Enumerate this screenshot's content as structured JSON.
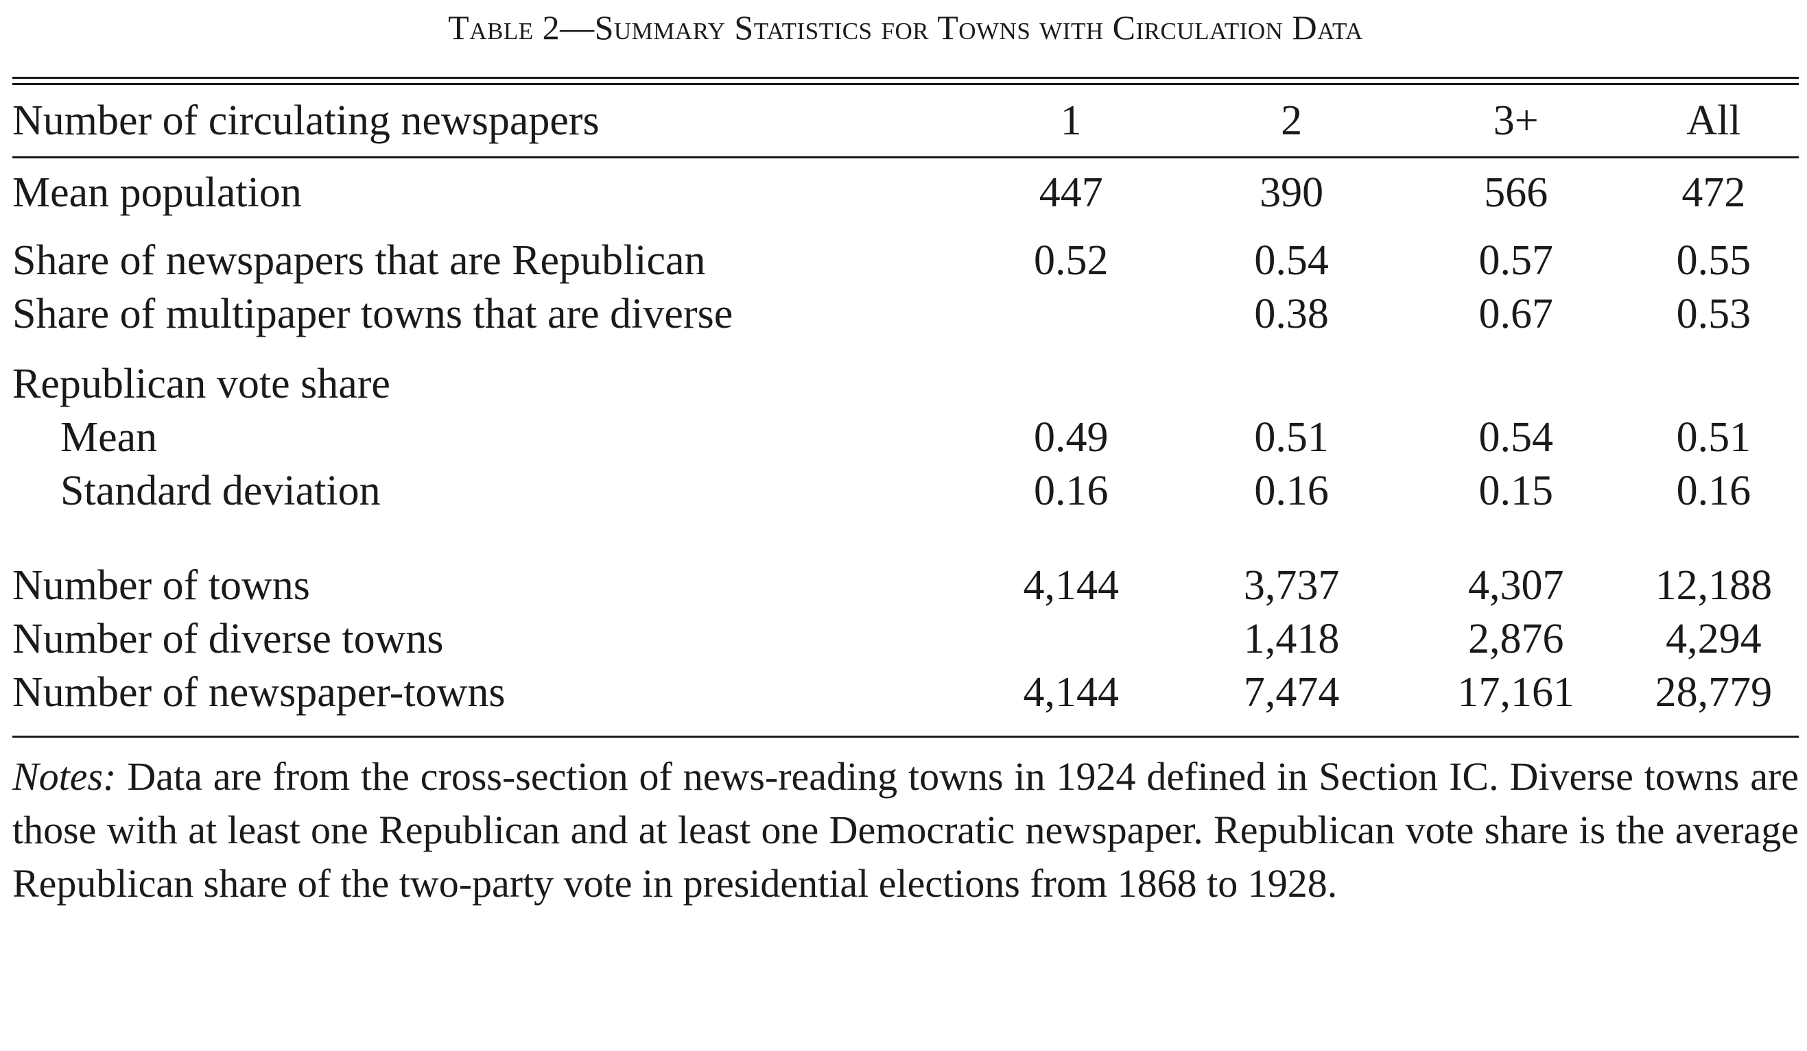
{
  "table": {
    "title": "Table 2—Summary Statistics for Towns with Circulation Data",
    "columns": [
      "Number of circulating newspapers",
      "1",
      "2",
      "3+",
      "All"
    ],
    "rows": {
      "mean_population": {
        "label": "Mean population",
        "values": [
          "447",
          "390",
          "566",
          "472"
        ]
      },
      "share_republican": {
        "label": "Share of newspapers that are Republican",
        "values": [
          "0.52",
          "0.54",
          "0.57",
          "0.55"
        ]
      },
      "share_diverse": {
        "label": "Share of multipaper towns that are diverse",
        "values": [
          "",
          "0.38",
          "0.67",
          "0.53"
        ]
      },
      "rep_vote_share": {
        "label": "Republican vote share"
      },
      "vote_mean": {
        "label": "Mean",
        "values": [
          "0.49",
          "0.51",
          "0.54",
          "0.51"
        ]
      },
      "vote_sd": {
        "label": "Standard deviation",
        "values": [
          "0.16",
          "0.16",
          "0.15",
          "0.16"
        ]
      },
      "num_towns": {
        "label": "Number of towns",
        "values": [
          "4,144",
          "3,737",
          "4,307",
          "12,188"
        ]
      },
      "num_diverse": {
        "label": "Number of diverse towns",
        "values": [
          "",
          "1,418",
          "2,876",
          "4,294"
        ]
      },
      "num_newspaper_towns": {
        "label": "Number of newspaper-towns",
        "values": [
          "4,144",
          "7,474",
          "17,161",
          "28,779"
        ]
      }
    },
    "notes": {
      "lead": "Notes:",
      "text": " Data are from the cross-section of news-reading towns in 1924 defined in Section IC. Diverse towns are those with at least one Republican and at least one Democratic newspaper. Republican vote share is the average Republican share of the two-party vote in presidential elections from 1868 to 1928."
    }
  }
}
